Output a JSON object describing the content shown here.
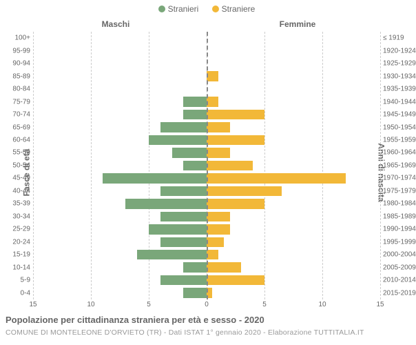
{
  "chart": {
    "type": "population-pyramid",
    "legend": {
      "male": {
        "label": "Stranieri",
        "color": "#7aa77a"
      },
      "female": {
        "label": "Straniere",
        "color": "#f2b838"
      }
    },
    "headers": {
      "left": "Maschi",
      "right": "Femmine"
    },
    "y_axis_left": {
      "title": "Fasce di età"
    },
    "y_axis_right": {
      "title": "Anni di nascita"
    },
    "x_axis": {
      "min": -15,
      "max": 15,
      "ticks": [
        -15,
        -10,
        -5,
        0,
        5,
        10,
        15
      ],
      "tick_labels": [
        "15",
        "10",
        "5",
        "0",
        "5",
        "10",
        "15"
      ]
    },
    "grid_color": "#cccccc",
    "center_line_color": "#888888",
    "background_color": "#ffffff",
    "bar_colors": {
      "male": "#7aa77a",
      "female": "#f2b838"
    },
    "rows": [
      {
        "age": "100+",
        "birth": "≤ 1919",
        "m": 0,
        "f": 0
      },
      {
        "age": "95-99",
        "birth": "1920-1924",
        "m": 0,
        "f": 0
      },
      {
        "age": "90-94",
        "birth": "1925-1929",
        "m": 0,
        "f": 0
      },
      {
        "age": "85-89",
        "birth": "1930-1934",
        "m": 0,
        "f": 1
      },
      {
        "age": "80-84",
        "birth": "1935-1939",
        "m": 0,
        "f": 0
      },
      {
        "age": "75-79",
        "birth": "1940-1944",
        "m": 2,
        "f": 1
      },
      {
        "age": "70-74",
        "birth": "1945-1949",
        "m": 2,
        "f": 5
      },
      {
        "age": "65-69",
        "birth": "1950-1954",
        "m": 4,
        "f": 2
      },
      {
        "age": "60-64",
        "birth": "1955-1959",
        "m": 5,
        "f": 5
      },
      {
        "age": "55-59",
        "birth": "1960-1964",
        "m": 3,
        "f": 2
      },
      {
        "age": "50-54",
        "birth": "1965-1969",
        "m": 2,
        "f": 4
      },
      {
        "age": "45-49",
        "birth": "1970-1974",
        "m": 9,
        "f": 12
      },
      {
        "age": "40-44",
        "birth": "1975-1979",
        "m": 4,
        "f": 6.5
      },
      {
        "age": "35-39",
        "birth": "1980-1984",
        "m": 7,
        "f": 5
      },
      {
        "age": "30-34",
        "birth": "1985-1989",
        "m": 4,
        "f": 2
      },
      {
        "age": "25-29",
        "birth": "1990-1994",
        "m": 5,
        "f": 2
      },
      {
        "age": "20-24",
        "birth": "1995-1999",
        "m": 4,
        "f": 1.5
      },
      {
        "age": "15-19",
        "birth": "2000-2004",
        "m": 6,
        "f": 1
      },
      {
        "age": "10-14",
        "birth": "2005-2009",
        "m": 2,
        "f": 3
      },
      {
        "age": "5-9",
        "birth": "2010-2014",
        "m": 4,
        "f": 5
      },
      {
        "age": "0-4",
        "birth": "2015-2019",
        "m": 2,
        "f": 0.5
      }
    ],
    "title": "Popolazione per cittadinanza straniera per età e sesso - 2020",
    "subtitle": "COMUNE DI MONTELEONE D'ORVIETO (TR) - Dati ISTAT 1° gennaio 2020 - Elaborazione TUTTITALIA.IT",
    "font": {
      "family": "Arial",
      "tick_size": 10,
      "axis_title_size": 12,
      "title_size": 13,
      "subtitle_size": 10.5
    }
  }
}
